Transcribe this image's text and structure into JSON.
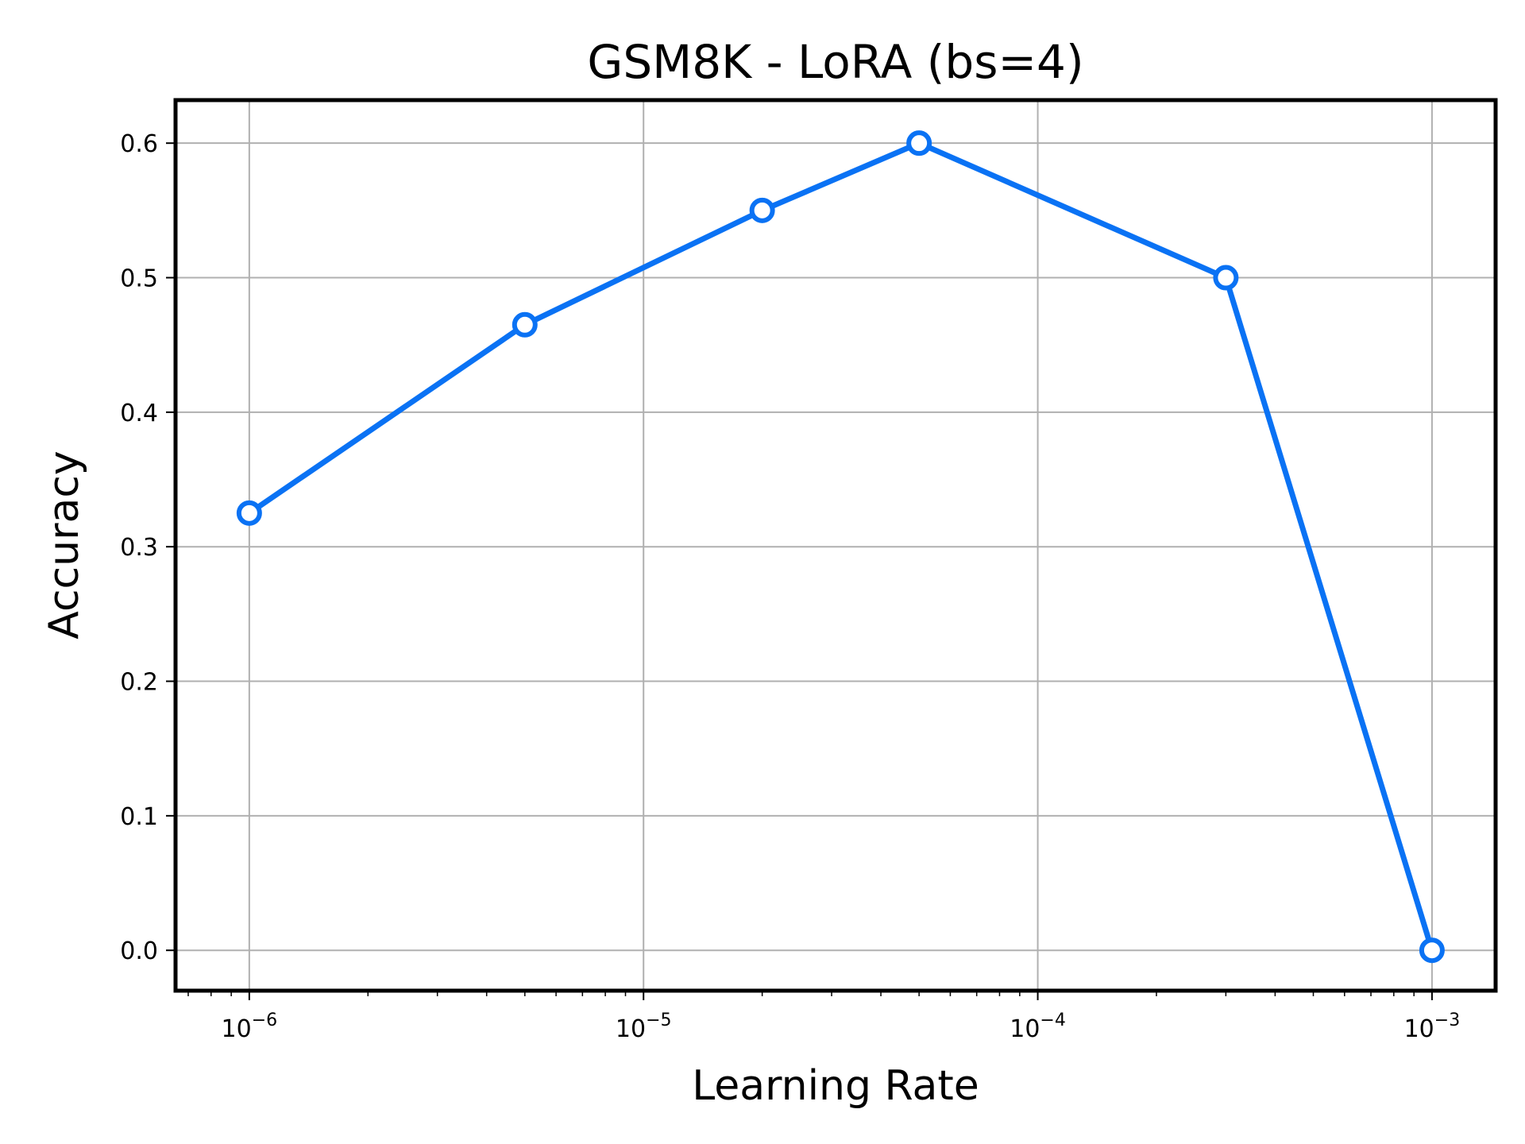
{
  "chart_data": {
    "type": "line",
    "title": "GSM8K - LoRA (bs=4)",
    "xlabel": "Learning Rate",
    "ylabel": "Accuracy",
    "x_scale": "log",
    "xlim": [
      6.5e-07,
      0.00145
    ],
    "ylim": [
      -0.03,
      0.632
    ],
    "grid": true,
    "x_ticks": [
      {
        "value": 1e-06,
        "base": "10",
        "exp": "−6"
      },
      {
        "value": 1e-05,
        "base": "10",
        "exp": "−5"
      },
      {
        "value": 0.0001,
        "base": "10",
        "exp": "−4"
      },
      {
        "value": 0.001,
        "base": "10",
        "exp": "−3"
      }
    ],
    "y_ticks": [
      {
        "value": 0.0,
        "label": "0.0"
      },
      {
        "value": 0.1,
        "label": "0.1"
      },
      {
        "value": 0.2,
        "label": "0.2"
      },
      {
        "value": 0.3,
        "label": "0.3"
      },
      {
        "value": 0.4,
        "label": "0.4"
      },
      {
        "value": 0.5,
        "label": "0.5"
      },
      {
        "value": 0.6,
        "label": "0.6"
      }
    ],
    "series": [
      {
        "color": "#0a72f4",
        "marker": "hollow-circle",
        "x": [
          1e-06,
          5e-06,
          2e-05,
          5e-05,
          0.0003,
          0.001
        ],
        "y": [
          0.325,
          0.465,
          0.55,
          0.6,
          0.5,
          0.0
        ]
      }
    ]
  }
}
